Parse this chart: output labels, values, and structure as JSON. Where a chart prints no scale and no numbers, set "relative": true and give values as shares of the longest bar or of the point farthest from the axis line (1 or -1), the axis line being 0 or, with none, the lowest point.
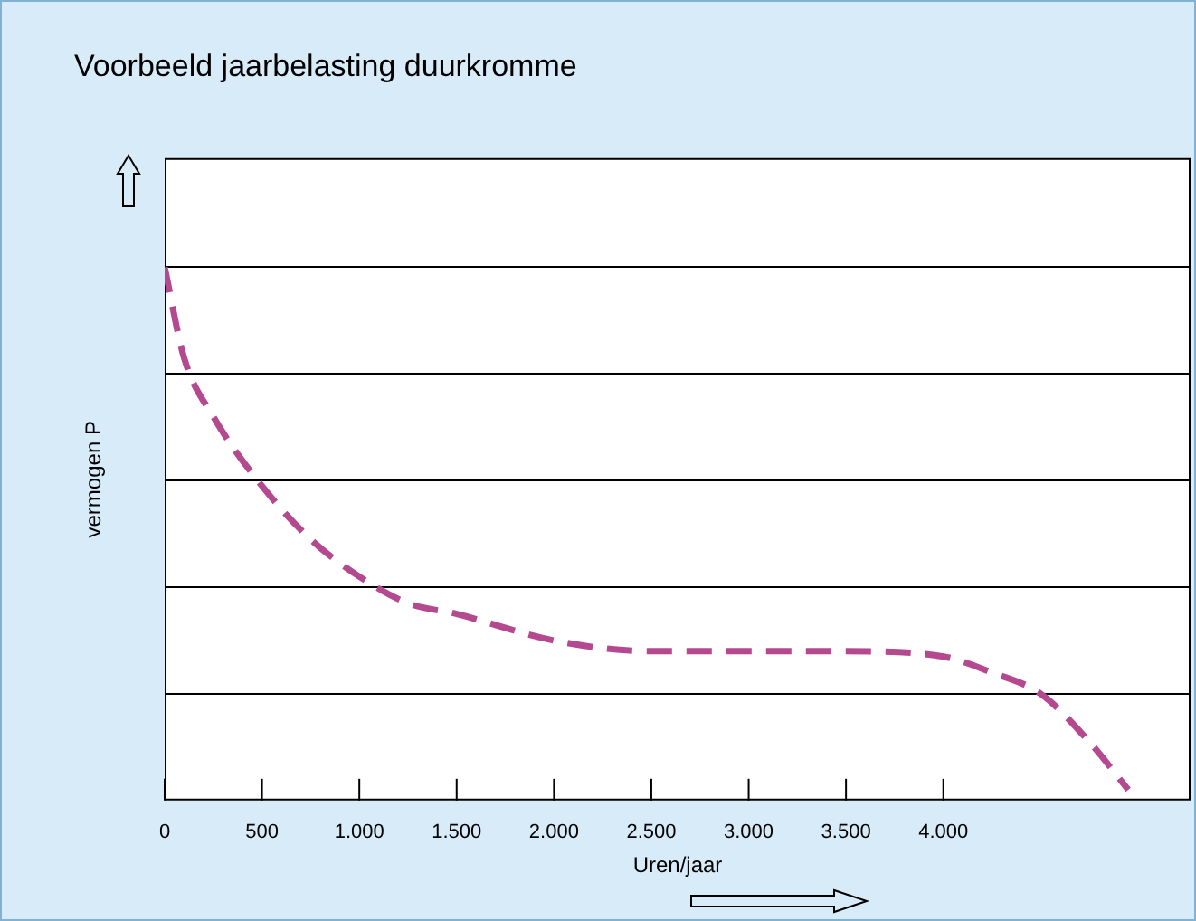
{
  "chart_data": {
    "type": "line",
    "title": "Voorbeeld jaarbelasting duurkromme",
    "xlabel": "Uren/jaar",
    "ylabel": "vermogen P",
    "relative": true,
    "xlim": [
      0,
      5270
    ],
    "xticks": [
      0,
      500,
      {
        "value": 1000,
        "label": "1.000"
      },
      {
        "value": 1500,
        "label": "1.500"
      },
      {
        "value": 2000,
        "label": "2.000"
      },
      {
        "value": 2500,
        "label": "2.500"
      },
      {
        "value": 3000,
        "label": "3.000"
      },
      {
        "value": 3500,
        "label": "3.500"
      },
      {
        "value": 4000,
        "label": "4.000"
      }
    ],
    "grid": "y",
    "legend": false,
    "marker": "none",
    "line_style": "dashed",
    "series": [
      {
        "color": "#b5498f",
        "x": [
          0,
          100,
          250,
          500,
          750,
          1000,
          1250,
          1500,
          2000,
          2500,
          3000,
          3500,
          4000,
          4250,
          4500,
          4750,
          4950
        ],
        "values": [
          1,
          0.83,
          0.72,
          0.59,
          0.49,
          0.42,
          0.37,
          0.35,
          0.3,
          0.28,
          0.28,
          0.28,
          0.27,
          0.24,
          0.2,
          0.11,
          0.02
        ]
      }
    ]
  }
}
